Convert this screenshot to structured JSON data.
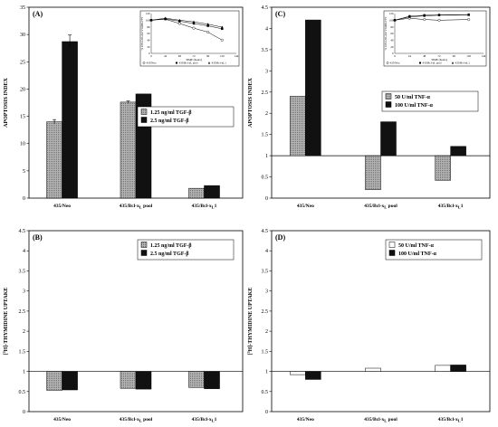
{
  "colors": {
    "grey": "#9a9a9a",
    "black": "#111111",
    "white": "#ffffff",
    "axis": "#000000"
  },
  "chart_data": [
    {
      "type": "bar",
      "panel": "(A)",
      "ylabel": "APOPTOSIS INDEX",
      "ylim": [
        0,
        35
      ],
      "yticks": [
        0,
        5,
        10,
        15,
        20,
        25,
        30,
        35
      ],
      "baseline": 0,
      "grid": false,
      "legend_position": "right",
      "categories": [
        "435/Neo",
        "435/Bcl-xL pool",
        "435/Bcl-xL1"
      ],
      "series": [
        {
          "name": "1.25 ng/ml TGF-β",
          "color": "grey",
          "values": [
            14,
            17.6,
            1.8
          ],
          "errors": [
            0.4,
            0.2,
            0
          ]
        },
        {
          "name": "2.5  ng/ml TGF-β",
          "color": "black",
          "values": [
            28.7,
            19.1,
            2.3
          ],
          "errors": [
            1.2,
            0,
            0
          ]
        }
      ],
      "inset": {
        "type": "line",
        "ylabel": "% CELLULAR VIABILITY",
        "xlabel": "TIME (hours)",
        "xticks": [
          0,
          24,
          48,
          72,
          96,
          120,
          144
        ],
        "yticks": [
          0,
          20,
          40,
          60,
          80,
          100,
          120
        ],
        "xlim": [
          0,
          144
        ],
        "ylim": [
          0,
          120
        ],
        "series": [
          {
            "name": "435/Neo",
            "marker": "open-circle",
            "x": [
              0,
              24,
              48,
              72,
              96,
              120
            ],
            "y": [
              100,
              103,
              90,
              76,
              64,
              40
            ]
          },
          {
            "name": "435/Bcl-xL pool",
            "marker": "filled-square",
            "x": [
              0,
              24,
              48,
              72,
              96,
              120
            ],
            "y": [
              100,
              104,
              97,
              90,
              83,
              74
            ]
          },
          {
            "name": "435/Bcl-xL1",
            "marker": "filled-triangle",
            "x": [
              0,
              24,
              48,
              72,
              96,
              120
            ],
            "y": [
              100,
              106,
              100,
              95,
              88,
              79
            ]
          }
        ]
      }
    },
    {
      "type": "bar",
      "panel": "(C)",
      "ylabel": "APOPTOSIS INDEX",
      "ylim": [
        0,
        4.5
      ],
      "yticks": [
        0,
        0.5,
        1,
        1.5,
        2,
        2.5,
        3,
        3.5,
        4,
        4.5
      ],
      "baseline": 1,
      "grid": false,
      "legend_position": "right",
      "categories": [
        "435/Neo",
        "435/Bcl-xL pool",
        "435/Bcl-xL1"
      ],
      "series": [
        {
          "name": "50  U/ml TNF-α",
          "color": "grey",
          "values": [
            2.4,
            0.2,
            0.42
          ]
        },
        {
          "name": "100 U/ml TNF-α",
          "color": "black",
          "values": [
            4.2,
            1.8,
            1.22
          ]
        }
      ],
      "inset": {
        "type": "line",
        "ylabel": "% CELLULAR VIABILITY",
        "xlabel": "TIME (hours)",
        "xticks": [
          0,
          24,
          48,
          72,
          96,
          120,
          144
        ],
        "yticks": [
          0,
          20,
          40,
          60,
          80,
          100,
          120
        ],
        "xlim": [
          0,
          144
        ],
        "ylim": [
          0,
          120
        ],
        "series": [
          {
            "name": "435/Neo",
            "marker": "open-circle",
            "x": [
              0,
              24,
              48,
              72,
              120
            ],
            "y": [
              100,
              106,
              102,
              100,
              102
            ]
          },
          {
            "name": "435/Bcl-xL pool",
            "marker": "filled-square",
            "x": [
              0,
              24,
              48,
              72,
              120
            ],
            "y": [
              100,
              112,
              115,
              116,
              117
            ]
          },
          {
            "name": "435/Bcl-xL1",
            "marker": "filled-triangle",
            "x": [
              0,
              24,
              48,
              72,
              120
            ],
            "y": [
              100,
              110,
              113,
              115,
              116
            ]
          }
        ]
      }
    },
    {
      "type": "bar",
      "panel": "(B)",
      "ylabel": "[3H]-THYMIDINE UPTAKE",
      "ylim": [
        0,
        4.5
      ],
      "yticks": [
        0,
        0.5,
        1,
        1.5,
        2,
        2.5,
        3,
        3.5,
        4,
        4.5
      ],
      "baseline": 1,
      "grid": false,
      "legend_position": "top-right",
      "categories": [
        "435/Neo",
        "435/Bcl-xL pool",
        "435/Bcl-xL1"
      ],
      "series": [
        {
          "name": "1.25 ng/ml TGF-β",
          "color": "grey",
          "values": [
            0.53,
            0.58,
            0.6
          ]
        },
        {
          "name": "2.5  ng/ml TGF-β",
          "color": "black",
          "values": [
            0.54,
            0.56,
            0.57
          ]
        }
      ]
    },
    {
      "type": "bar",
      "panel": "(D)",
      "ylabel": "[3H]-THYMIDINE UPTAKE",
      "ylim": [
        0,
        4.5
      ],
      "yticks": [
        0,
        0.5,
        1,
        1.5,
        2,
        2.5,
        3,
        3.5,
        4,
        4.5
      ],
      "baseline": 1,
      "grid": false,
      "legend_position": "top-right",
      "categories": [
        "435/Neo",
        "435/Bcl-xL pool",
        "435/Bcl-xL1"
      ],
      "series": [
        {
          "name": "50  U/ml TNF-α",
          "color": "white",
          "values": [
            0.92,
            1.08,
            1.15
          ]
        },
        {
          "name": "100 U/ml TNF-α",
          "color": "black",
          "values": [
            0.8,
            null,
            1.16
          ]
        }
      ]
    }
  ]
}
